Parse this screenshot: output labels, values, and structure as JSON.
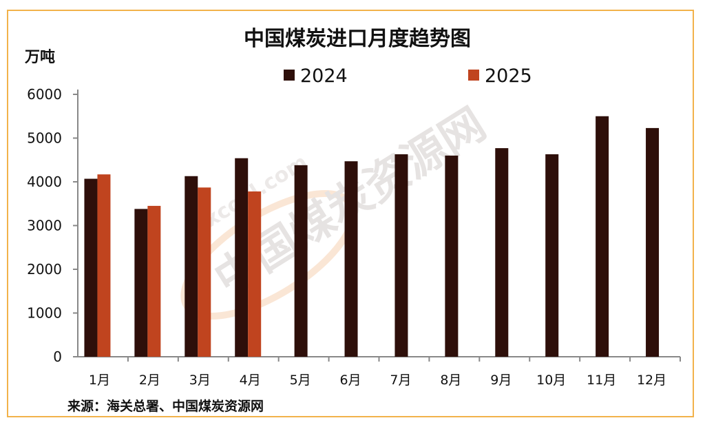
{
  "chart_data": {
    "type": "bar",
    "title": "中国煤炭进口月度趋势图",
    "ylabel": "万吨",
    "xlabel": "",
    "categories": [
      "1月",
      "2月",
      "3月",
      "4月",
      "5月",
      "6月",
      "7月",
      "8月",
      "9月",
      "10月",
      "11月",
      "12月"
    ],
    "series": [
      {
        "name": "2024",
        "color": "#2e0f0a",
        "values": [
          4070,
          3380,
          4130,
          4540,
          4380,
          4470,
          4630,
          4600,
          4770,
          4630,
          5500,
          5230
        ]
      },
      {
        "name": "2025",
        "color": "#c0441f",
        "values": [
          4170,
          3450,
          3870,
          3780,
          null,
          null,
          null,
          null,
          null,
          null,
          null,
          null
        ]
      }
    ],
    "ylim": [
      0,
      6000
    ],
    "yticks": [
      "0",
      "1000",
      "2000",
      "3000",
      "4000",
      "5000",
      "6000"
    ],
    "grid": false,
    "legend_position": "top"
  },
  "source": "来源：海关总署、中国煤炭资源网",
  "watermark": {
    "cn": "中国煤炭资源网",
    "en": "sxcoal.com"
  },
  "colors": {
    "border": "#f2b24a",
    "watermark": "#f3c9a0"
  }
}
